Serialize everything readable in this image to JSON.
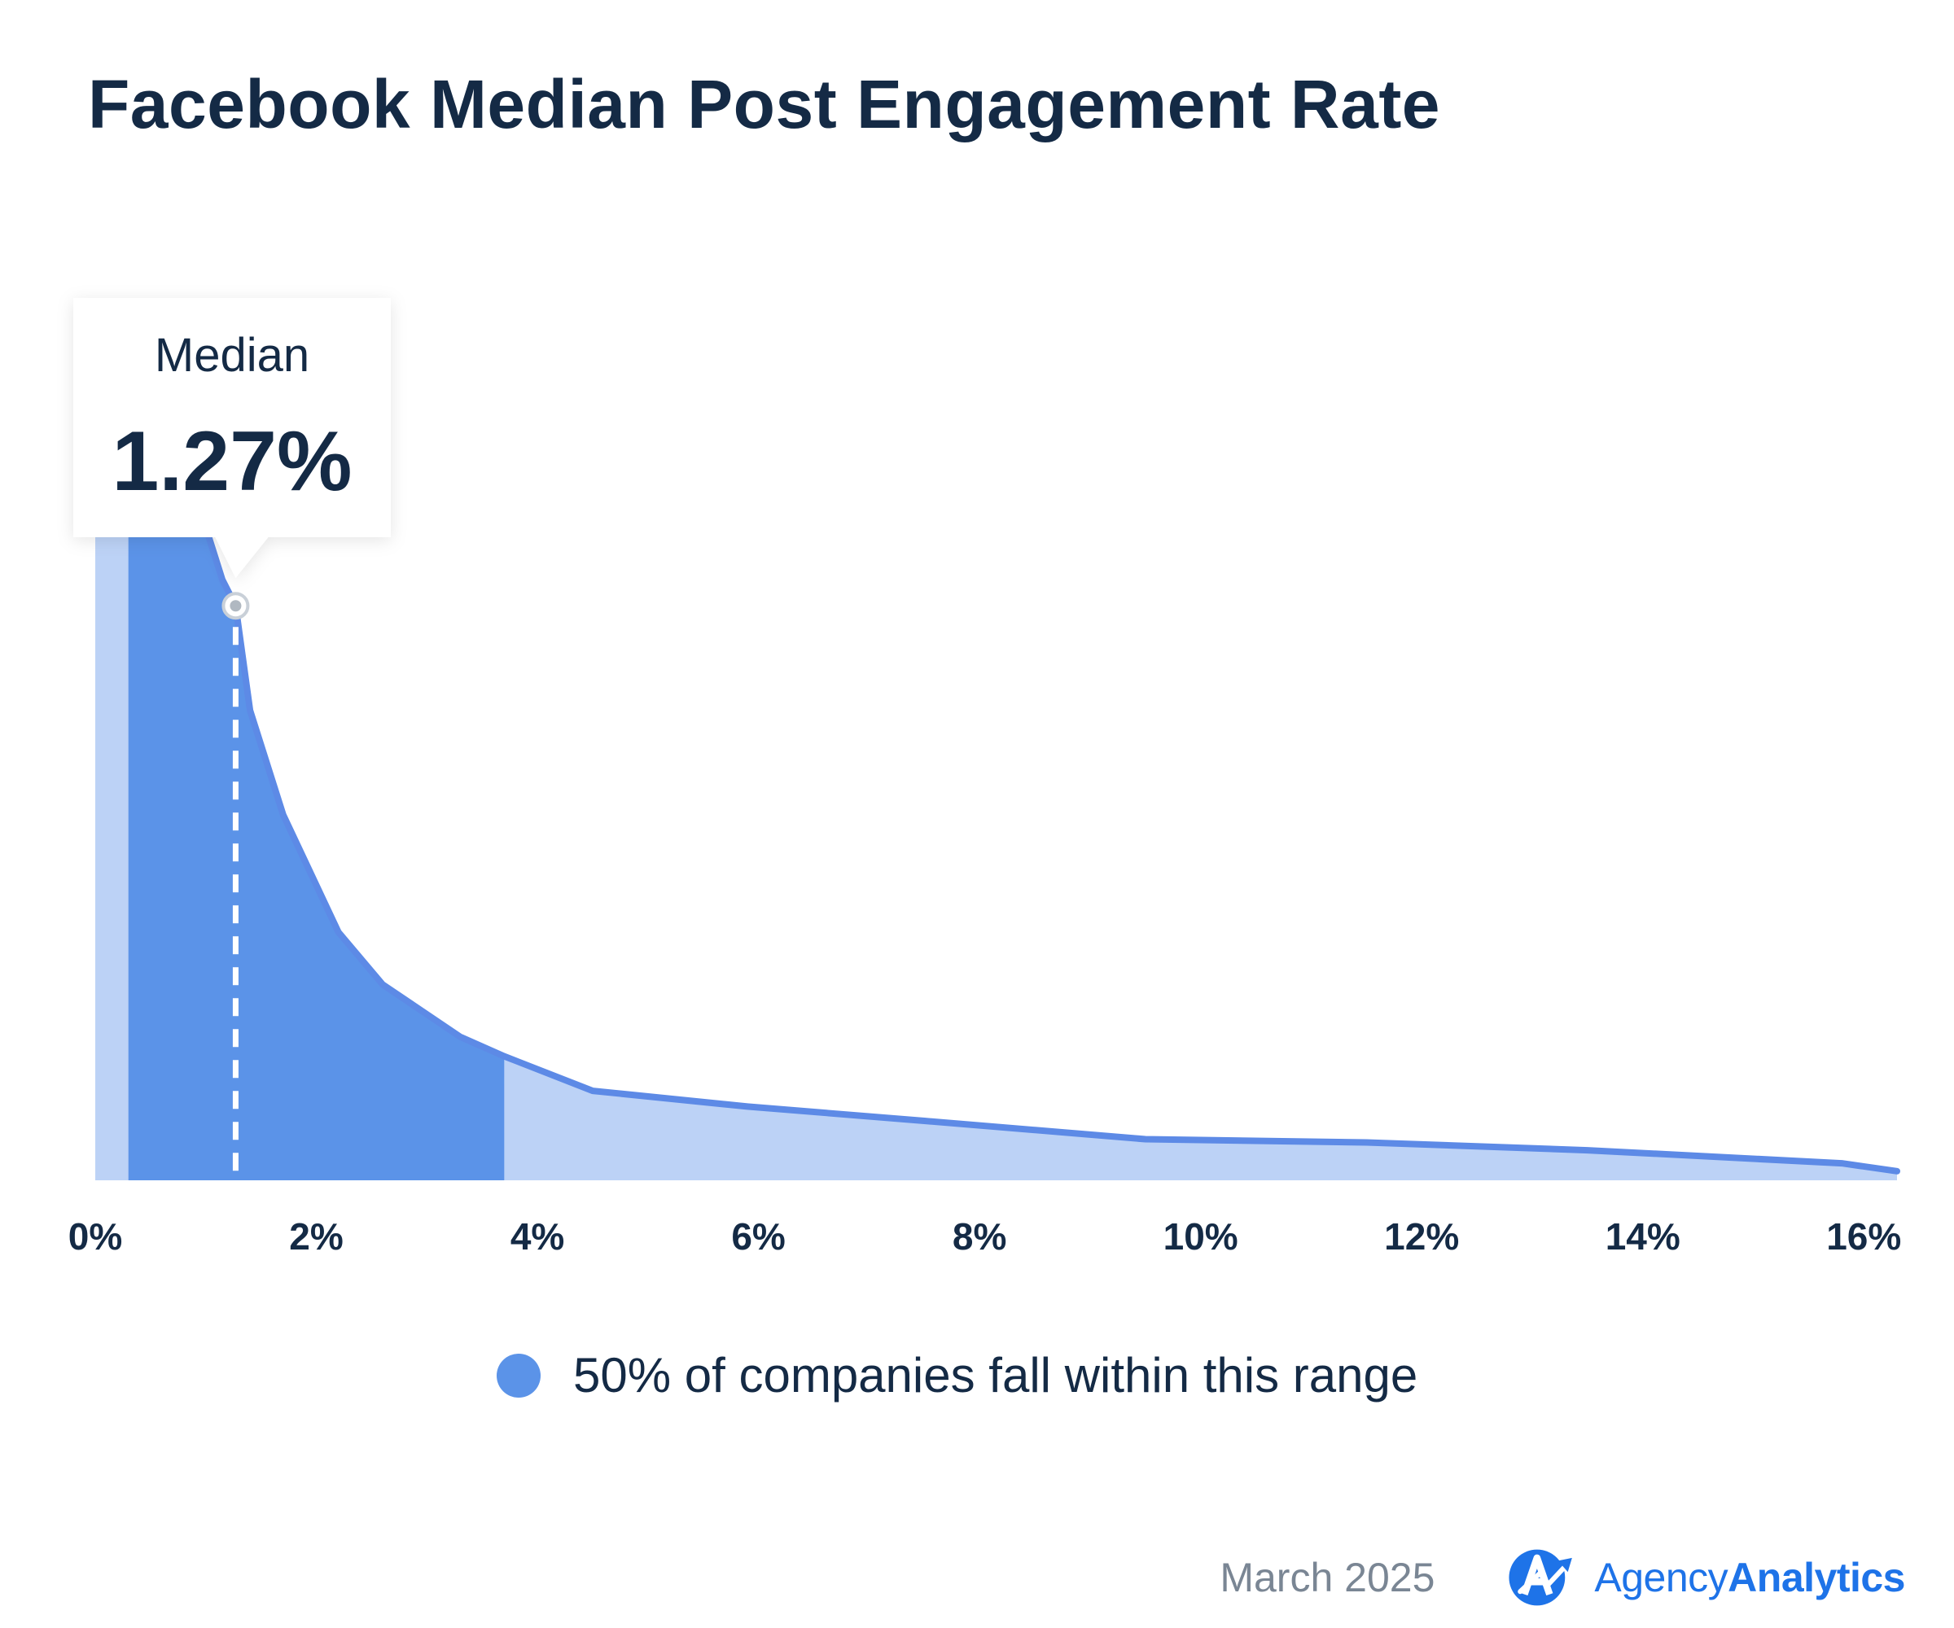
{
  "chart_data": {
    "type": "area",
    "title": "Facebook Median Post Engagement Rate",
    "xlabel": "",
    "ylabel": "",
    "x_ticks": [
      "0%",
      "2%",
      "4%",
      "6%",
      "8%",
      "10%",
      "12%",
      "14%",
      "16%"
    ],
    "xlim": [
      0,
      16.3
    ],
    "ylim": [
      0,
      100
    ],
    "curve": {
      "x": [
        0,
        0.3,
        1.0,
        1.15,
        1.27,
        1.4,
        1.7,
        2.2,
        2.6,
        3.3,
        3.7,
        4.5,
        5.9,
        7.5,
        9.5,
        11.5,
        13.5,
        15.8,
        16.3
      ],
      "y": [
        100,
        100,
        100,
        92,
        88,
        72,
        56,
        38,
        30,
        22,
        19,
        13.7,
        11.3,
        9.1,
        6.3,
        5.8,
        4.6,
        2.6,
        1.4
      ]
    },
    "highlight_range": [
      0.3,
      3.7
    ],
    "median": {
      "label": "Median",
      "value": 1.27,
      "value_text": "1.27%"
    },
    "legend": [
      {
        "label": "50% of companies fall within this range",
        "color": "#5b93e8"
      }
    ],
    "colors": {
      "area_light": "#bcd2f6",
      "area_dark": "#5b93e8",
      "line": "#5d8ae6",
      "text": "#142a45"
    }
  },
  "footer": {
    "date": "March 2025",
    "brand_light": "Agency",
    "brand_bold": "Analytics",
    "brand_color": "#1e73e8"
  }
}
